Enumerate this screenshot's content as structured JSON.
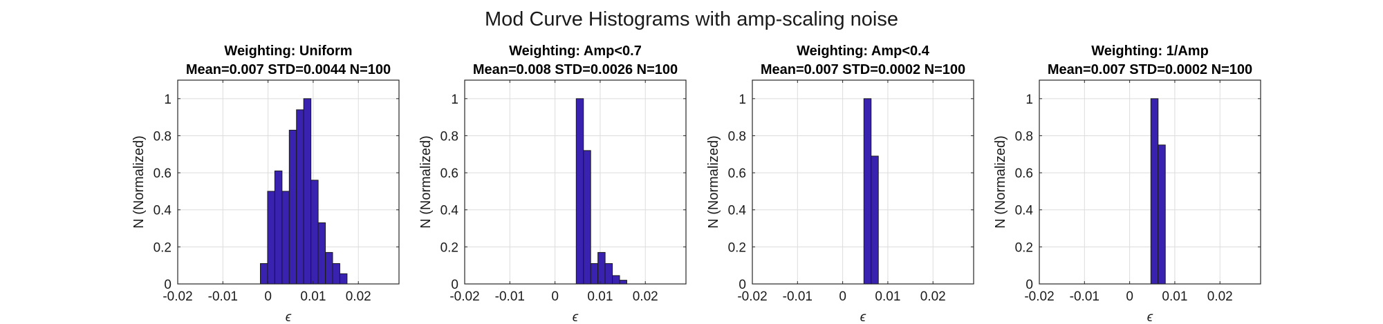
{
  "figure": {
    "title": "Mod Curve Histograms with amp-scaling noise"
  },
  "colors": {
    "bar_fill": "#3a22b0",
    "bar_edge": "#1a1a1a",
    "grid": "#dcdcdc",
    "axis": "#262626",
    "text": "#1a1a1a"
  },
  "chart_data": [
    {
      "type": "bar",
      "title": "Weighting: Uniform",
      "subtitle": "Mean=0.007 STD=0.0044 N=100",
      "xlabel": "ϵ",
      "ylabel": "N (Normalized)",
      "xlim": [
        -0.02,
        0.029
      ],
      "ylim": [
        0,
        1.1
      ],
      "xticks": [
        -0.02,
        -0.01,
        0,
        0.01,
        0.02
      ],
      "xtick_labels": [
        "-0.02",
        "-0.01",
        "0",
        "0.01",
        "0.02"
      ],
      "yticks": [
        0,
        0.2,
        0.4,
        0.6,
        0.8,
        1
      ],
      "ytick_labels": [
        "0",
        "0.2",
        "0.4",
        "0.6",
        "0.8",
        "1"
      ],
      "grid": true,
      "bin_width": 0.0016,
      "bin_centers": [
        -0.0009,
        0.0007,
        0.0023,
        0.0039,
        0.0055,
        0.0071,
        0.0087,
        0.0103,
        0.0119,
        0.0135,
        0.0151,
        0.0167,
        0.0183
      ],
      "values": [
        0.11,
        0.5,
        0.61,
        0.5,
        0.83,
        0.94,
        1.0,
        0.56,
        0.33,
        0.17,
        0.11,
        0.055,
        0.0
      ]
    },
    {
      "type": "bar",
      "title": "Weighting: Amp<0.7",
      "subtitle": "Mean=0.008 STD=0.0026 N=100",
      "xlabel": "ϵ",
      "ylabel": "N (Normalized)",
      "xlim": [
        -0.02,
        0.029
      ],
      "ylim": [
        0,
        1.1
      ],
      "xticks": [
        -0.02,
        -0.01,
        0,
        0.01,
        0.02
      ],
      "xtick_labels": [
        "-0.02",
        "-0.01",
        "0",
        "0.01",
        "0.02"
      ],
      "yticks": [
        0,
        0.2,
        0.4,
        0.6,
        0.8,
        1
      ],
      "ytick_labels": [
        "0",
        "0.2",
        "0.4",
        "0.6",
        "0.8",
        "1"
      ],
      "grid": true,
      "bin_width": 0.0016,
      "bin_centers": [
        0.0055,
        0.0071,
        0.0087,
        0.0103,
        0.0119,
        0.0135,
        0.0151,
        0.0167,
        0.0183
      ],
      "values": [
        1.0,
        0.72,
        0.11,
        0.17,
        0.11,
        0.045,
        0.02,
        0.0,
        0.0
      ]
    },
    {
      "type": "bar",
      "title": "Weighting: Amp<0.4",
      "subtitle": "Mean=0.007 STD=0.0002 N=100",
      "xlabel": "ϵ",
      "ylabel": "N (Normalized)",
      "xlim": [
        -0.02,
        0.029
      ],
      "ylim": [
        0,
        1.1
      ],
      "xticks": [
        -0.02,
        -0.01,
        0,
        0.01,
        0.02
      ],
      "xtick_labels": [
        "-0.02",
        "-0.01",
        "0",
        "0.01",
        "0.02"
      ],
      "yticks": [
        0,
        0.2,
        0.4,
        0.6,
        0.8,
        1
      ],
      "ytick_labels": [
        "0",
        "0.2",
        "0.4",
        "0.6",
        "0.8",
        "1"
      ],
      "grid": true,
      "bin_width": 0.0016,
      "bin_centers": [
        0.0055,
        0.0071
      ],
      "values": [
        1.0,
        0.69
      ]
    },
    {
      "type": "bar",
      "title": "Weighting: 1/Amp",
      "subtitle": "Mean=0.007 STD=0.0002 N=100",
      "xlabel": "ϵ",
      "ylabel": "N (Normalized)",
      "xlim": [
        -0.02,
        0.029
      ],
      "ylim": [
        0,
        1.1
      ],
      "xticks": [
        -0.02,
        -0.01,
        0,
        0.01,
        0.02
      ],
      "xtick_labels": [
        "-0.02",
        "-0.01",
        "0",
        "0.01",
        "0.02"
      ],
      "yticks": [
        0,
        0.2,
        0.4,
        0.6,
        0.8,
        1
      ],
      "ytick_labels": [
        "0",
        "0.2",
        "0.4",
        "0.6",
        "0.8",
        "1"
      ],
      "grid": true,
      "bin_width": 0.0016,
      "bin_centers": [
        0.0055,
        0.0071
      ],
      "values": [
        1.0,
        0.75
      ]
    }
  ]
}
